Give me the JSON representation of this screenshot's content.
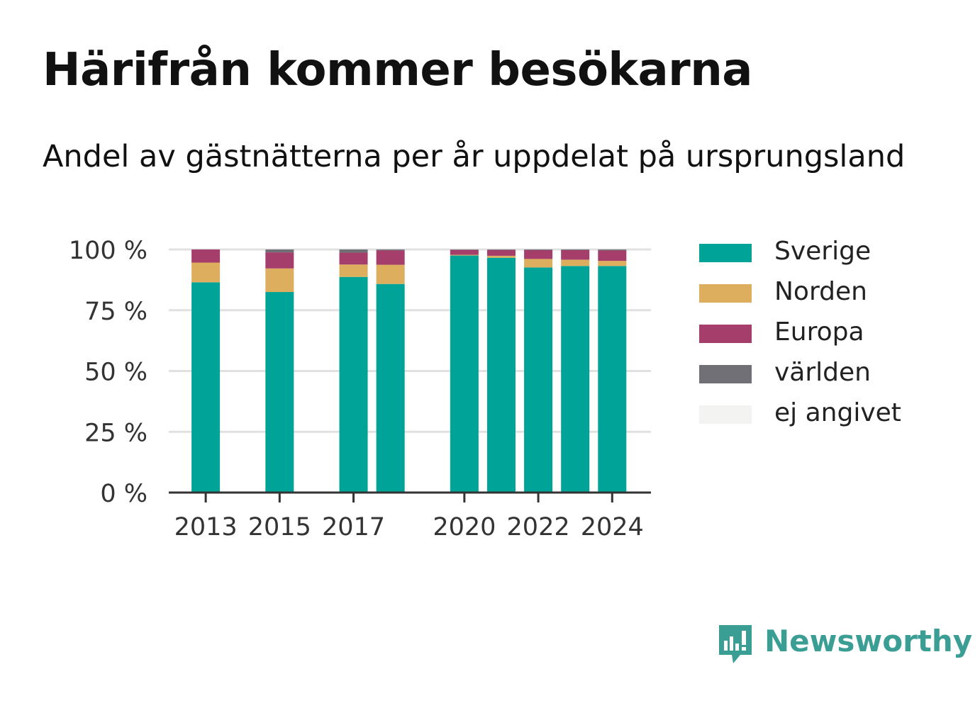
{
  "title": "Härifrån kommer besökarna",
  "subtitle": "Andel av gästnätterna per år uppdelat på ursprungsland",
  "brand": {
    "name": "Newsworthy",
    "icon": "newsworthy-logo-icon",
    "color": "#3a9e94"
  },
  "chart_data": {
    "type": "bar",
    "stacked": true,
    "x": [
      2013,
      2015,
      2017,
      2018,
      2020,
      2021,
      2022,
      2023,
      2024
    ],
    "x_tick_labels": [
      "2013",
      "2015",
      "2017",
      "2020",
      "2022",
      "2024"
    ],
    "x_tick_values": [
      2013,
      2015,
      2017,
      2020,
      2022,
      2024
    ],
    "y_tick_labels": [
      "0 %",
      "25 %",
      "50 %",
      "75 %",
      "100 %"
    ],
    "y_tick_values": [
      0,
      25,
      50,
      75,
      100
    ],
    "ylim": [
      0,
      100
    ],
    "grid": true,
    "legend_position": "right",
    "series": [
      {
        "name": "Sverige",
        "color": "#00a398",
        "values": [
          86.5,
          82.5,
          88.7,
          85.8,
          97.5,
          96.6,
          92.6,
          93.2,
          93.2
        ]
      },
      {
        "name": "Norden",
        "color": "#dcae5d",
        "values": [
          8.1,
          9.7,
          5.1,
          7.9,
          0.3,
          0.8,
          3.5,
          2.6,
          2.1
        ]
      },
      {
        "name": "Europa",
        "color": "#a63e6c",
        "values": [
          5.4,
          6.6,
          4.9,
          5.9,
          2.0,
          2.4,
          3.6,
          3.9,
          4.3
        ]
      },
      {
        "name": "världen",
        "color": "#717076",
        "values": [
          0.0,
          1.2,
          1.3,
          0.4,
          0.2,
          0.2,
          0.3,
          0.3,
          0.4
        ]
      },
      {
        "name": "ej angivet",
        "color": "#f3f3f1",
        "values": [
          0.0,
          0.0,
          0.0,
          0.0,
          0.0,
          0.0,
          0.0,
          0.0,
          0.0
        ]
      }
    ]
  }
}
